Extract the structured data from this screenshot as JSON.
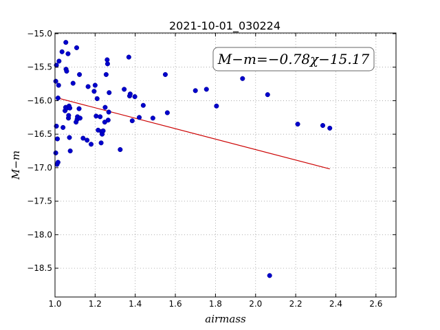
{
  "chart_data": {
    "type": "scatter",
    "title": "2021-10-01_030224",
    "xlabel": "airmass",
    "ylabel": "M−m",
    "xlim": [
      1.0,
      2.7
    ],
    "ylim": [
      -14.99,
      -18.93
    ],
    "y_inverted": true,
    "grid": true,
    "x_ticks": [
      1.0,
      1.2,
      1.4,
      1.6,
      1.8,
      2.0,
      2.2,
      2.4,
      2.6
    ],
    "x_tick_labels": [
      "1.0",
      "1.2",
      "1.4",
      "1.6",
      "1.8",
      "2.0",
      "2.2",
      "2.4",
      "2.6"
    ],
    "y_ticks": [
      -15.0,
      -15.5,
      -16.0,
      -16.5,
      -17.0,
      -17.5,
      -18.0,
      -18.5
    ],
    "y_tick_labels": [
      "−15.0",
      "−15.5",
      "−16.0",
      "−16.5",
      "−17.0",
      "−17.5",
      "−18.0",
      "−18.5"
    ],
    "annotation": "M−m=−0.78χ−15.17",
    "fit": {
      "slope": -0.78,
      "intercept": -15.17,
      "x_range": [
        1.02,
        2.37
      ],
      "color": "#cc0000"
    },
    "points_color": "#0000cc",
    "points": [
      [
        1.004,
        -16.78
      ],
      [
        1.004,
        -15.71
      ],
      [
        1.007,
        -15.47
      ],
      [
        1.007,
        -16.38
      ],
      [
        1.01,
        -16.95
      ],
      [
        1.012,
        -16.57
      ],
      [
        1.015,
        -15.96
      ],
      [
        1.015,
        -16.92
      ],
      [
        1.018,
        -15.77
      ],
      [
        1.02,
        -15.41
      ],
      [
        1.035,
        -15.27
      ],
      [
        1.04,
        -16.4
      ],
      [
        1.05,
        -16.15
      ],
      [
        1.053,
        -16.1
      ],
      [
        1.054,
        -15.13
      ],
      [
        1.055,
        -15.53
      ],
      [
        1.058,
        -15.56
      ],
      [
        1.06,
        -16.11
      ],
      [
        1.065,
        -15.3
      ],
      [
        1.067,
        -16.26
      ],
      [
        1.068,
        -16.22
      ],
      [
        1.07,
        -16.08
      ],
      [
        1.072,
        -16.55
      ],
      [
        1.074,
        -16.11
      ],
      [
        1.076,
        -16.75
      ],
      [
        1.09,
        -15.74
      ],
      [
        1.105,
        -16.32
      ],
      [
        1.108,
        -15.21
      ],
      [
        1.11,
        -16.28
      ],
      [
        1.112,
        -16.24
      ],
      [
        1.12,
        -16.12
      ],
      [
        1.122,
        -15.61
      ],
      [
        1.125,
        -16.26
      ],
      [
        1.14,
        -16.56
      ],
      [
        1.16,
        -16.59
      ],
      [
        1.165,
        -15.79
      ],
      [
        1.18,
        -16.65
      ],
      [
        1.195,
        -15.86
      ],
      [
        1.2,
        -15.77
      ],
      [
        1.205,
        -16.23
      ],
      [
        1.21,
        -15.97
      ],
      [
        1.215,
        -16.44
      ],
      [
        1.225,
        -16.24
      ],
      [
        1.23,
        -16.63
      ],
      [
        1.232,
        -16.46
      ],
      [
        1.235,
        -16.5
      ],
      [
        1.24,
        -16.45
      ],
      [
        1.248,
        -16.32
      ],
      [
        1.25,
        -16.1
      ],
      [
        1.255,
        -15.61
      ],
      [
        1.26,
        -15.39
      ],
      [
        1.262,
        -15.45
      ],
      [
        1.265,
        -16.29
      ],
      [
        1.268,
        -16.17
      ],
      [
        1.27,
        -15.88
      ],
      [
        1.325,
        -16.73
      ],
      [
        1.345,
        -15.83
      ],
      [
        1.368,
        -15.35
      ],
      [
        1.372,
        -15.93
      ],
      [
        1.375,
        -15.9
      ],
      [
        1.385,
        -16.3
      ],
      [
        1.398,
        -15.94
      ],
      [
        1.42,
        -16.25
      ],
      [
        1.44,
        -16.07
      ],
      [
        1.488,
        -16.26
      ],
      [
        1.55,
        -15.61
      ],
      [
        1.56,
        -16.18
      ],
      [
        1.7,
        -15.85
      ],
      [
        1.755,
        -15.83
      ],
      [
        1.805,
        -16.08
      ],
      [
        1.935,
        -15.67
      ],
      [
        2.06,
        -15.91
      ],
      [
        2.07,
        -18.61
      ],
      [
        2.21,
        -16.35
      ],
      [
        2.335,
        -16.37
      ],
      [
        2.37,
        -16.41
      ]
    ]
  }
}
